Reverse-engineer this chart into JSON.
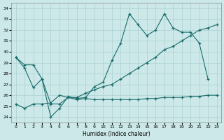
{
  "xlabel": "Humidex (Indice chaleur)",
  "bg_color": "#cce8e8",
  "grid_color": "#aad0d0",
  "line_color": "#1a6b6b",
  "xlim": [
    -0.5,
    23.5
  ],
  "ylim": [
    23.5,
    34.5
  ],
  "yticks": [
    24,
    25,
    26,
    27,
    28,
    29,
    30,
    31,
    32,
    33,
    34
  ],
  "xticks": [
    0,
    1,
    2,
    3,
    4,
    5,
    6,
    7,
    8,
    9,
    10,
    11,
    12,
    13,
    14,
    15,
    16,
    17,
    18,
    19,
    20,
    21,
    22,
    23
  ],
  "line_wavy": [
    29.5,
    28.8,
    28.8,
    27.5,
    24.0,
    24.8,
    25.9,
    25.7,
    25.8,
    26.8,
    27.2,
    29.2,
    30.8,
    33.5,
    32.5,
    31.5,
    32.0,
    33.5,
    32.2,
    31.8,
    31.8,
    30.8,
    27.5,
    null
  ],
  "line_flat": [
    29.5,
    28.5,
    26.7,
    27.5,
    25.2,
    25.2,
    25.8,
    25.6,
    25.7,
    25.6,
    25.6,
    25.6,
    25.6,
    25.6,
    25.6,
    25.7,
    25.7,
    25.8,
    25.8,
    25.8,
    25.9,
    25.9,
    26.0,
    26.0
  ],
  "line_diag": [
    25.2,
    24.8,
    25.2,
    25.2,
    25.3,
    26.0,
    25.8,
    25.8,
    26.2,
    26.5,
    26.8,
    27.0,
    27.5,
    28.0,
    28.5,
    29.0,
    29.5,
    30.2,
    30.5,
    31.0,
    31.5,
    32.0,
    32.2,
    32.5
  ]
}
